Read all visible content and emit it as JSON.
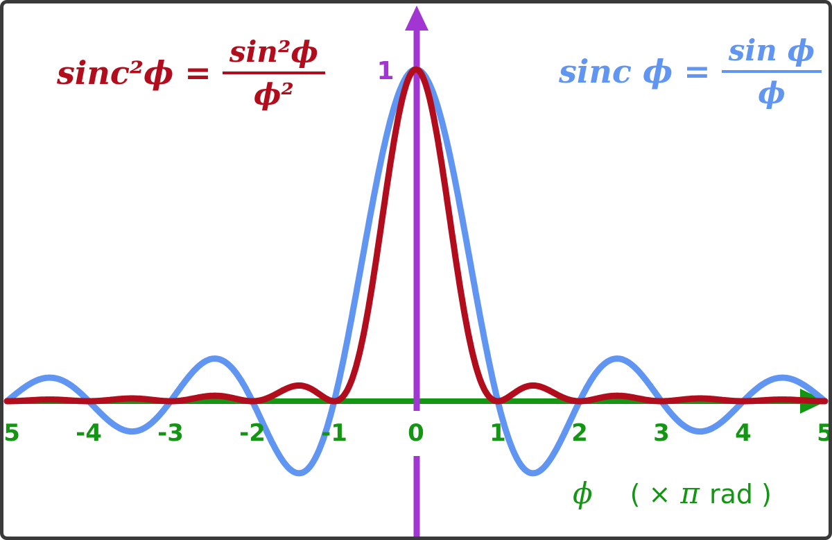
{
  "colors": {
    "red": "#b20d1d",
    "blue": "#6195f2",
    "green": "#149614",
    "purple": "#a236d2",
    "border": "#3a3a3a"
  },
  "formulas": {
    "red": {
      "lhs": "sinc²ϕ",
      "eq": "=",
      "num": "sin²ϕ",
      "den": "ϕ²"
    },
    "blue": {
      "lhs": "sinc ϕ",
      "eq": "=",
      "num": "sin ϕ",
      "den": "ϕ"
    }
  },
  "chart_data": {
    "type": "line",
    "title": "",
    "x_axis": {
      "range": [
        -5,
        5
      ],
      "tick_labels": [
        "-5",
        "-4",
        "-3",
        "-2",
        "-1",
        "0",
        "1",
        "2",
        "3",
        "4",
        "5"
      ],
      "tick_values": [
        -5,
        -4,
        -3,
        -2,
        -1,
        0,
        1,
        2,
        3,
        4,
        5
      ],
      "label": "ϕ ( × π rad )",
      "label_parts": {
        "phi": "ϕ",
        "bracket": "( ×",
        "pi": "π",
        "unit": "rad )"
      }
    },
    "y_axis": {
      "range": [
        -0.25,
        1.1
      ],
      "peak_label": "1",
      "grid": false
    },
    "series": [
      {
        "name": "sinc ϕ = sin ϕ / ϕ",
        "fn": "sinc",
        "color": "#6195f2",
        "stroke_width": 9
      },
      {
        "name": "sinc²ϕ = sin²ϕ / ϕ²",
        "fn": "sinc_squared",
        "color": "#b20d1d",
        "stroke_width": 9
      }
    ],
    "sample_points": {
      "x": [
        -5,
        -4.5,
        -4,
        -3.5,
        -3,
        -2.5,
        -2,
        -1.5,
        -1,
        -0.5,
        0,
        0.5,
        1,
        1.5,
        2,
        2.5,
        3,
        3.5,
        4,
        4.5,
        5
      ],
      "sinc": [
        0,
        0.0707,
        0,
        -0.0909,
        0,
        0.1273,
        0,
        -0.2122,
        0,
        0.6366,
        1,
        0.6366,
        0,
        -0.2122,
        0,
        0.1273,
        0,
        -0.0909,
        0,
        0.0707,
        0
      ],
      "sinc_squared": [
        0,
        0.005,
        0,
        0.0083,
        0,
        0.0162,
        0,
        0.045,
        0,
        0.4053,
        1,
        0.4053,
        0,
        0.045,
        0,
        0.0162,
        0,
        0.0083,
        0,
        0.005,
        0
      ]
    },
    "legend_position": "formulas-top-corners"
  }
}
